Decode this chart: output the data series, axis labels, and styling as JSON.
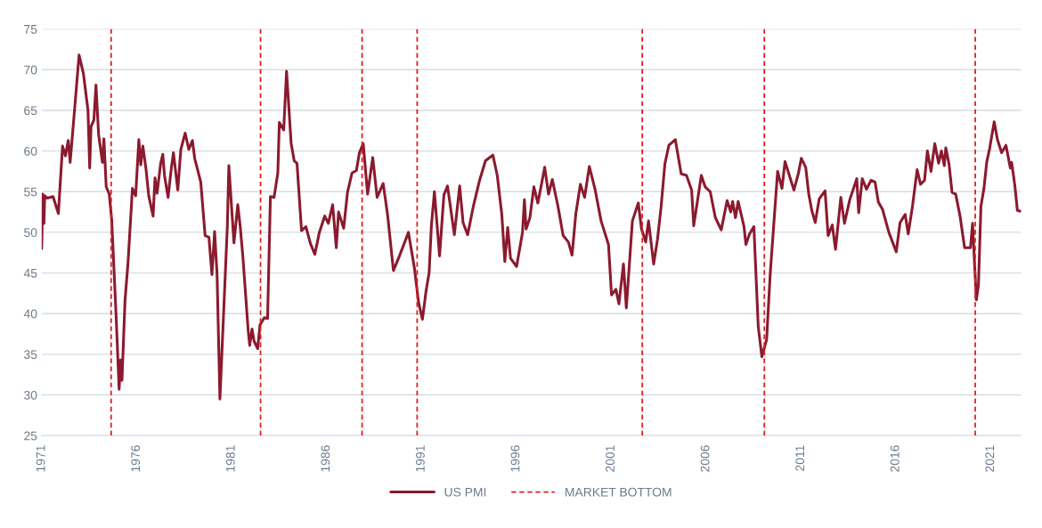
{
  "chart_data": {
    "type": "line",
    "xlim": [
      1971,
      2022.6
    ],
    "ylim": [
      25,
      75
    ],
    "xticks": [
      1971,
      1976,
      1981,
      1986,
      1991,
      1996,
      2001,
      2006,
      2011,
      2016,
      2021
    ],
    "yticks": [
      25,
      30,
      35,
      40,
      45,
      50,
      55,
      60,
      65,
      70,
      75
    ],
    "grid": "y",
    "legend": "bottom",
    "marker": "none",
    "line_style": "solid",
    "series": [
      {
        "name": "US PMI",
        "color": "#8b1a2e",
        "x": [
          1971.0,
          1971.06,
          1971.12,
          1971.16,
          1971.3,
          1971.6,
          1971.88,
          1971.95,
          1972.1,
          1972.25,
          1972.4,
          1972.5,
          1972.73,
          1972.97,
          1973.2,
          1973.44,
          1973.53,
          1973.6,
          1973.75,
          1973.86,
          1974.0,
          1974.2,
          1974.28,
          1974.4,
          1974.56,
          1974.69,
          1974.92,
          1975.08,
          1975.16,
          1975.23,
          1975.39,
          1975.55,
          1975.78,
          1975.95,
          1976.12,
          1976.22,
          1976.33,
          1976.5,
          1976.64,
          1976.87,
          1976.97,
          1977.08,
          1977.27,
          1977.38,
          1977.47,
          1977.66,
          1977.82,
          1977.94,
          1978.17,
          1978.33,
          1978.56,
          1978.75,
          1978.94,
          1979.06,
          1979.38,
          1979.61,
          1979.81,
          1979.97,
          1980.11,
          1980.24,
          1980.39,
          1980.78,
          1980.86,
          1981.13,
          1981.33,
          1981.46,
          1981.6,
          1981.88,
          1981.96,
          1982.08,
          1982.19,
          1982.38,
          1982.5,
          1982.73,
          1982.9,
          1983.05,
          1983.24,
          1983.44,
          1983.52,
          1983.75,
          1983.9,
          1984.14,
          1984.3,
          1984.45,
          1984.69,
          1984.92,
          1985.16,
          1985.39,
          1985.63,
          1985.91,
          1986.1,
          1986.33,
          1986.52,
          1986.64,
          1986.91,
          1987.11,
          1987.35,
          1987.58,
          1987.74,
          1987.94,
          1988.17,
          1988.44,
          1988.67,
          1988.99,
          1989.22,
          1989.53,
          1989.85,
          1990.32,
          1990.63,
          1990.86,
          1991.06,
          1991.25,
          1991.41,
          1991.53,
          1991.69,
          1991.96,
          1992.19,
          1992.38,
          1992.5,
          1992.74,
          1993.02,
          1993.2,
          1993.44,
          1993.75,
          1994.07,
          1994.38,
          1994.77,
          1995.0,
          1995.24,
          1995.4,
          1995.55,
          1995.7,
          1996.02,
          1996.33,
          1996.43,
          1996.52,
          1996.72,
          1996.93,
          1997.14,
          1997.5,
          1997.7,
          1997.9,
          1998.2,
          1998.47,
          1998.75,
          1998.94,
          1999.14,
          1999.38,
          1999.6,
          1999.85,
          2000.16,
          2000.47,
          2000.86,
          2001.02,
          2001.25,
          2001.41,
          2001.65,
          2001.8,
          2002.12,
          2002.43,
          2002.6,
          2002.82,
          2002.97,
          2003.24,
          2003.44,
          2003.63,
          2003.83,
          2004.04,
          2004.38,
          2004.69,
          2004.97,
          2005.24,
          2005.35,
          2005.75,
          2005.95,
          2006.22,
          2006.49,
          2006.8,
          2007.11,
          2007.3,
          2007.4,
          2007.55,
          2007.69,
          2008.0,
          2008.1,
          2008.29,
          2008.52,
          2008.75,
          2008.94,
          2009.19,
          2009.38,
          2009.77,
          2010.0,
          2010.16,
          2010.63,
          2010.86,
          2011.02,
          2011.25,
          2011.41,
          2011.57,
          2011.75,
          2011.96,
          2012.27,
          2012.43,
          2012.65,
          2012.82,
          2013.1,
          2013.29,
          2013.57,
          2013.94,
          2014.04,
          2014.23,
          2014.45,
          2014.69,
          2014.9,
          2015.08,
          2015.3,
          2015.63,
          2016.02,
          2016.22,
          2016.49,
          2016.65,
          2016.88,
          2017.12,
          2017.3,
          2017.51,
          2017.66,
          2017.85,
          2018.05,
          2018.25,
          2018.4,
          2018.55,
          2018.63,
          2018.8,
          2018.96,
          2019.15,
          2019.38,
          2019.62,
          2019.93,
          2020.04,
          2020.24,
          2020.35,
          2020.48,
          2020.64,
          2020.79,
          2020.94,
          2021.18,
          2021.35,
          2021.57,
          2021.8,
          2022.03,
          2022.1,
          2022.27,
          2022.4,
          2022.55
        ],
        "values": [
          48.0,
          54.7,
          51.1,
          54.5,
          54.2,
          54.4,
          52.3,
          55,
          60.6,
          59.4,
          61.3,
          58.6,
          65,
          71.8,
          69.5,
          65,
          57.9,
          63,
          63.8,
          68.1,
          62,
          58.6,
          61.5,
          55.6,
          54.7,
          51.5,
          39.8,
          30.7,
          34.3,
          31.8,
          41.6,
          46.3,
          55.4,
          54.5,
          61.4,
          58.3,
          60.6,
          57.7,
          54.5,
          52,
          56.7,
          54.8,
          58.5,
          59.6,
          57,
          54.3,
          57.7,
          59.8,
          55.2,
          60.2,
          62.2,
          60.2,
          61.3,
          59.1,
          56.2,
          49.6,
          49.4,
          44.8,
          50.1,
          44.8,
          29.5,
          50.7,
          58.2,
          48.7,
          53.4,
          50.7,
          47,
          37.9,
          36.1,
          38.1,
          36.6,
          35.7,
          38.6,
          39.5,
          39.4,
          54.4,
          54.3,
          57.3,
          63.5,
          62.6,
          69.8,
          61,
          58.8,
          58.5,
          50.2,
          50.7,
          48.6,
          47.3,
          50,
          52,
          51.1,
          53.4,
          48.1,
          52.5,
          50.5,
          54.9,
          57.3,
          57.6,
          59.8,
          60.9,
          54.7,
          59.2,
          54.3,
          56,
          52.2,
          45.3,
          47.1,
          50,
          45.7,
          41.3,
          39.3,
          42.8,
          45,
          50.8,
          55,
          47.1,
          54.6,
          55.7,
          53.7,
          49.7,
          55.7,
          51.2,
          49.7,
          53.3,
          56.4,
          58.8,
          59.5,
          57,
          52.2,
          46.4,
          50.6,
          46.8,
          45.8,
          50,
          54,
          50.4,
          51.8,
          55.6,
          53.6,
          58,
          54.7,
          56.5,
          53.2,
          49.6,
          48.8,
          47.2,
          52.3,
          55.9,
          54.3,
          58.1,
          55.2,
          51.4,
          48.5,
          42.3,
          43,
          41.2,
          46.1,
          40.7,
          51.4,
          53.6,
          50.4,
          48.8,
          51.4,
          46.1,
          49.1,
          53.1,
          58.4,
          60.7,
          61.4,
          57.2,
          57,
          55.2,
          50.8,
          57,
          55.6,
          55,
          51.8,
          50.3,
          53.9,
          52.5,
          53.8,
          51.8,
          53.8,
          50.7,
          48.5,
          49.8,
          50.7,
          38.4,
          34.7,
          36.8,
          44.9,
          57.5,
          55.4,
          58.7,
          55.2,
          57.2,
          59.1,
          58,
          54.7,
          52.7,
          51.2,
          54.1,
          55.1,
          49.6,
          50.9,
          47.9,
          54.3,
          51.1,
          54,
          56.6,
          52.4,
          56.6,
          55.3,
          56.4,
          56.2,
          53.7,
          52.8,
          50,
          47.6,
          51.2,
          52.2,
          49.8,
          53.3,
          57.7,
          55.9,
          56.4,
          60,
          57.5,
          60.9,
          58.5,
          60,
          58.2,
          60.4,
          58.4,
          54.9,
          54.7,
          52,
          48.1,
          48.1,
          51.1,
          41.7,
          43.5,
          53.2,
          55.4,
          58.7,
          60.3,
          63.6,
          61.4,
          59.8,
          60.7,
          57.9,
          58.6,
          55.7,
          52.7,
          52.6
        ]
      }
    ],
    "ref_lines": [
      {
        "axis": "x",
        "value": 1974.66,
        "label": "MARKET BOTTOM",
        "color": "#e02020",
        "line_style": "dashed"
      },
      {
        "axis": "x",
        "value": 1982.53,
        "color": "#e02020",
        "line_style": "dashed"
      },
      {
        "axis": "x",
        "value": 1987.88,
        "color": "#e02020",
        "line_style": "dashed"
      },
      {
        "axis": "x",
        "value": 1990.78,
        "color": "#e02020",
        "line_style": "dashed"
      },
      {
        "axis": "x",
        "value": 2002.64,
        "color": "#e02020",
        "line_style": "dashed"
      },
      {
        "axis": "x",
        "value": 2009.07,
        "color": "#e02020",
        "line_style": "dashed"
      },
      {
        "axis": "x",
        "value": 2020.18,
        "color": "#e02020",
        "line_style": "dashed"
      }
    ]
  }
}
